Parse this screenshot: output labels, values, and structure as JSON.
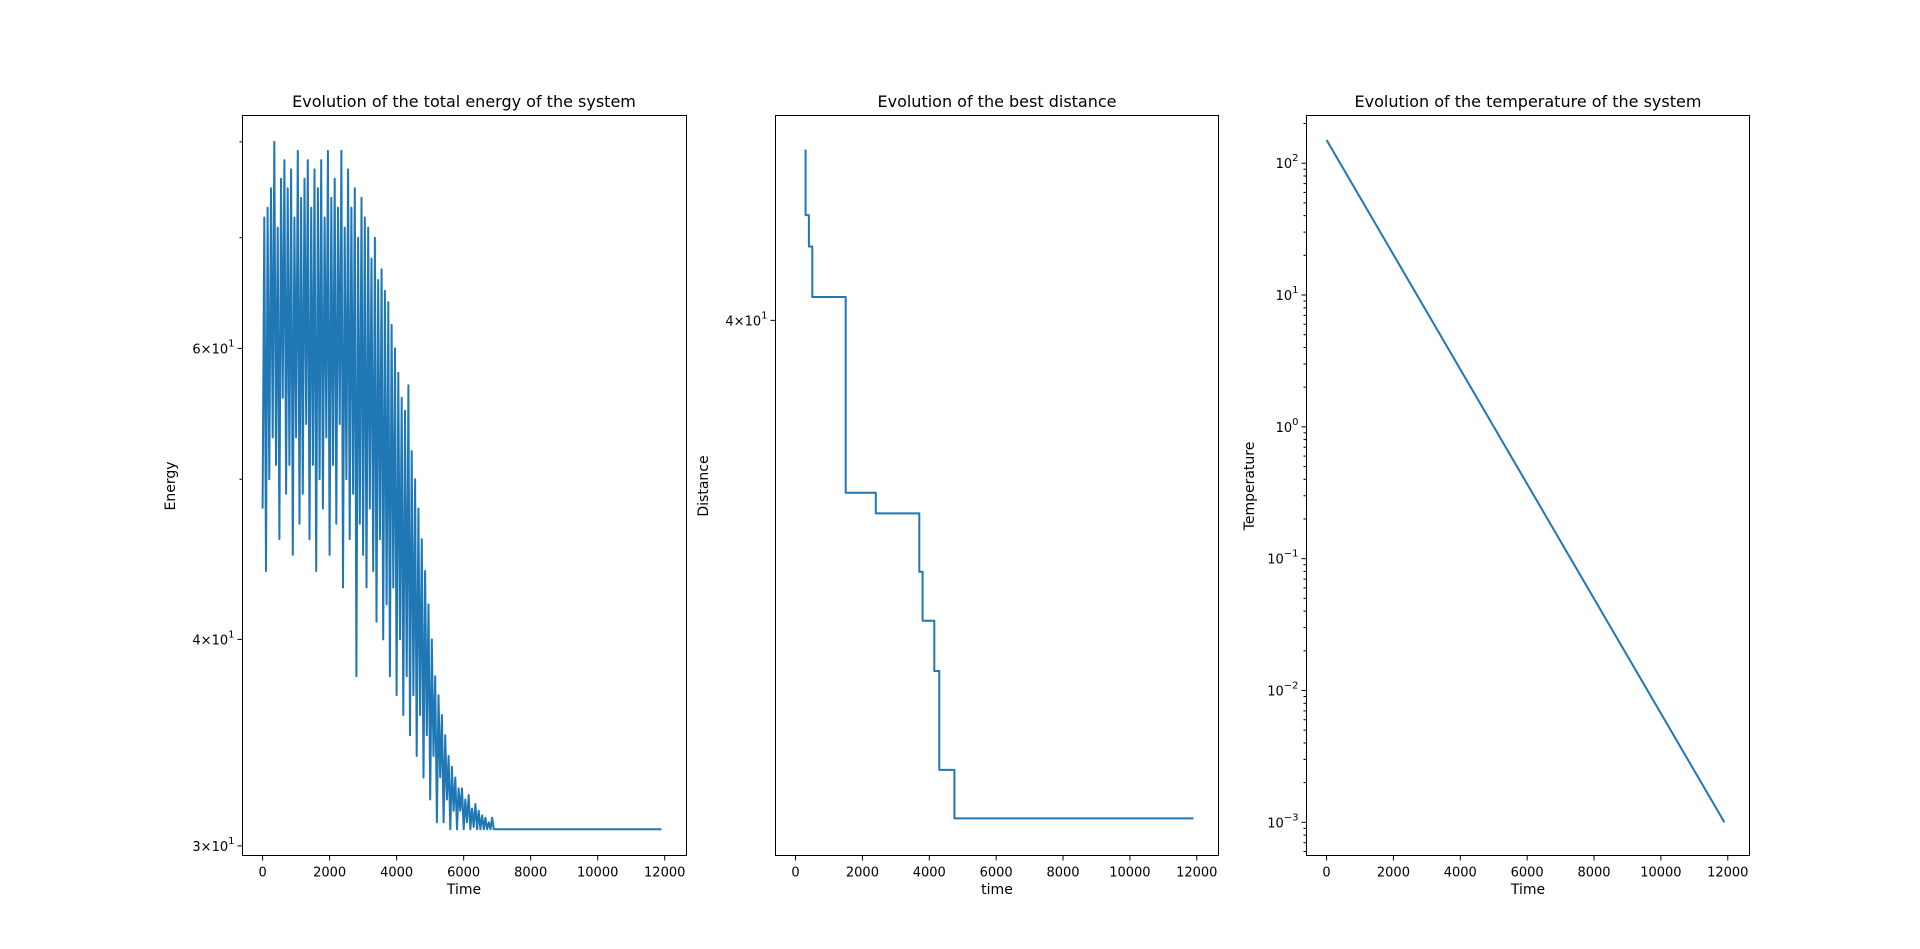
{
  "chart_data": [
    {
      "type": "line",
      "title": "Evolution of the total energy of the system",
      "xlabel": "Time",
      "ylabel": "Energy",
      "yscale": "log",
      "xlim": [
        -600,
        12650
      ],
      "ylim": [
        29.6,
        83
      ],
      "xticks": [
        0,
        2000,
        4000,
        6000,
        8000,
        10000,
        12000
      ],
      "xtick_labels": [
        "0",
        "2000",
        "4000",
        "6000",
        "8000",
        "10000",
        "12000"
      ],
      "yticks": [
        30,
        40,
        60
      ],
      "ytick_labels": [
        {
          "base": "3",
          "exp": "1"
        },
        {
          "base": "4",
          "exp": "1"
        },
        {
          "base": "6",
          "exp": "1"
        }
      ],
      "grid": false,
      "series": [
        {
          "color": "#1f77b4",
          "x": [
            0,
            50,
            100,
            150,
            200,
            250,
            300,
            350,
            400,
            450,
            500,
            550,
            600,
            650,
            700,
            750,
            800,
            850,
            900,
            950,
            1000,
            1050,
            1100,
            1150,
            1200,
            1250,
            1300,
            1350,
            1400,
            1450,
            1500,
            1550,
            1600,
            1650,
            1700,
            1750,
            1800,
            1850,
            1900,
            1950,
            2000,
            2050,
            2100,
            2150,
            2200,
            2250,
            2300,
            2350,
            2400,
            2450,
            2500,
            2550,
            2600,
            2650,
            2700,
            2750,
            2800,
            2850,
            2900,
            2950,
            3000,
            3050,
            3100,
            3150,
            3200,
            3250,
            3300,
            3350,
            3400,
            3450,
            3500,
            3550,
            3600,
            3650,
            3700,
            3750,
            3800,
            3850,
            3900,
            3950,
            4000,
            4050,
            4100,
            4150,
            4200,
            4250,
            4300,
            4350,
            4400,
            4450,
            4500,
            4550,
            4600,
            4650,
            4700,
            4750,
            4800,
            4850,
            4900,
            4950,
            5000,
            5050,
            5100,
            5150,
            5200,
            5250,
            5300,
            5350,
            5400,
            5450,
            5500,
            5550,
            5600,
            5650,
            5700,
            5750,
            5800,
            5850,
            5900,
            5950,
            6000,
            6050,
            6100,
            6150,
            6200,
            6250,
            6300,
            6350,
            6400,
            6450,
            6500,
            6550,
            6600,
            6650,
            6700,
            6750,
            6800,
            6850,
            6900,
            7000,
            11900
          ],
          "y": [
            48,
            72,
            44,
            73,
            50,
            75,
            53,
            80,
            51,
            71,
            46,
            76,
            56,
            78,
            49,
            75,
            51,
            77,
            45,
            72,
            53,
            79,
            47,
            74,
            49,
            76,
            54,
            78,
            46,
            73,
            51,
            77,
            44,
            75,
            50,
            78,
            48,
            72,
            53,
            79,
            45,
            74,
            51,
            76,
            47,
            73,
            54,
            79,
            43,
            71,
            50,
            77,
            46,
            73,
            49,
            75,
            38,
            70,
            47,
            74,
            45,
            72,
            43,
            71,
            48,
            68,
            44,
            70,
            41,
            66,
            46,
            67,
            40,
            65,
            42,
            64,
            38,
            62,
            43,
            60,
            37,
            58,
            40,
            56,
            36,
            55,
            38,
            57,
            35,
            52,
            37,
            50,
            34,
            48,
            36,
            46,
            33,
            44,
            35,
            42,
            32,
            40,
            34,
            38,
            31,
            37,
            33,
            36,
            31,
            35,
            32,
            34,
            30.7,
            33.5,
            31.5,
            33,
            30.7,
            32.5,
            31.5,
            32.5,
            30.7,
            32,
            31,
            32.2,
            30.7,
            31.6,
            30.8,
            31.8,
            30.7,
            31.5,
            30.7,
            31.3,
            30.7,
            31.2,
            30.7,
            31,
            30.7,
            31.2,
            30.7,
            30.7,
            30.7
          ]
        }
      ]
    },
    {
      "type": "line",
      "title": "Evolution of the best distance",
      "xlabel": "time",
      "ylabel": "Distance",
      "yscale": "log",
      "xlim": [
        -600,
        12650
      ],
      "ylim": [
        30.1,
        44.6
      ],
      "xticks": [
        0,
        2000,
        4000,
        6000,
        8000,
        10000,
        12000
      ],
      "xtick_labels": [
        "0",
        "2000",
        "4000",
        "6000",
        "8000",
        "10000",
        "12000"
      ],
      "yticks": [
        40
      ],
      "ytick_labels": [
        {
          "base": "4",
          "exp": "1"
        }
      ],
      "grid": false,
      "series": [
        {
          "color": "#1f77b4",
          "x": [
            300,
            300,
            400,
            400,
            500,
            500,
            1500,
            1500,
            2400,
            2400,
            3700,
            3700,
            3800,
            3800,
            4150,
            4150,
            4300,
            4300,
            4750,
            4750,
            11900
          ],
          "y": [
            43.8,
            42.3,
            42.3,
            41.6,
            41.6,
            40.5,
            40.5,
            36.5,
            36.5,
            36.1,
            36.1,
            35.0,
            35.0,
            34.1,
            34.1,
            33.2,
            33.2,
            31.5,
            31.5,
            30.7,
            30.7
          ]
        }
      ]
    },
    {
      "type": "line",
      "title": "Evolution of the temperature of the system",
      "xlabel": "Time",
      "ylabel": "Temperature",
      "yscale": "log",
      "xlim": [
        -600,
        12650
      ],
      "ylim": [
        0.00056,
        230
      ],
      "xticks": [
        0,
        2000,
        4000,
        6000,
        8000,
        10000,
        12000
      ],
      "xtick_labels": [
        "0",
        "2000",
        "4000",
        "6000",
        "8000",
        "10000",
        "12000"
      ],
      "yticks": [
        0.001,
        0.01,
        0.1,
        1,
        10,
        100
      ],
      "ytick_labels": [
        {
          "base": "10",
          "exp": "−3"
        },
        {
          "base": "10",
          "exp": "−2"
        },
        {
          "base": "10",
          "exp": "−1"
        },
        {
          "base": "10",
          "exp": "0"
        },
        {
          "base": "10",
          "exp": "1"
        },
        {
          "base": "10",
          "exp": "2"
        }
      ],
      "grid": false,
      "series": [
        {
          "color": "#1f77b4",
          "x": [
            0,
            11900
          ],
          "y": [
            150,
            0.001
          ]
        }
      ]
    }
  ]
}
